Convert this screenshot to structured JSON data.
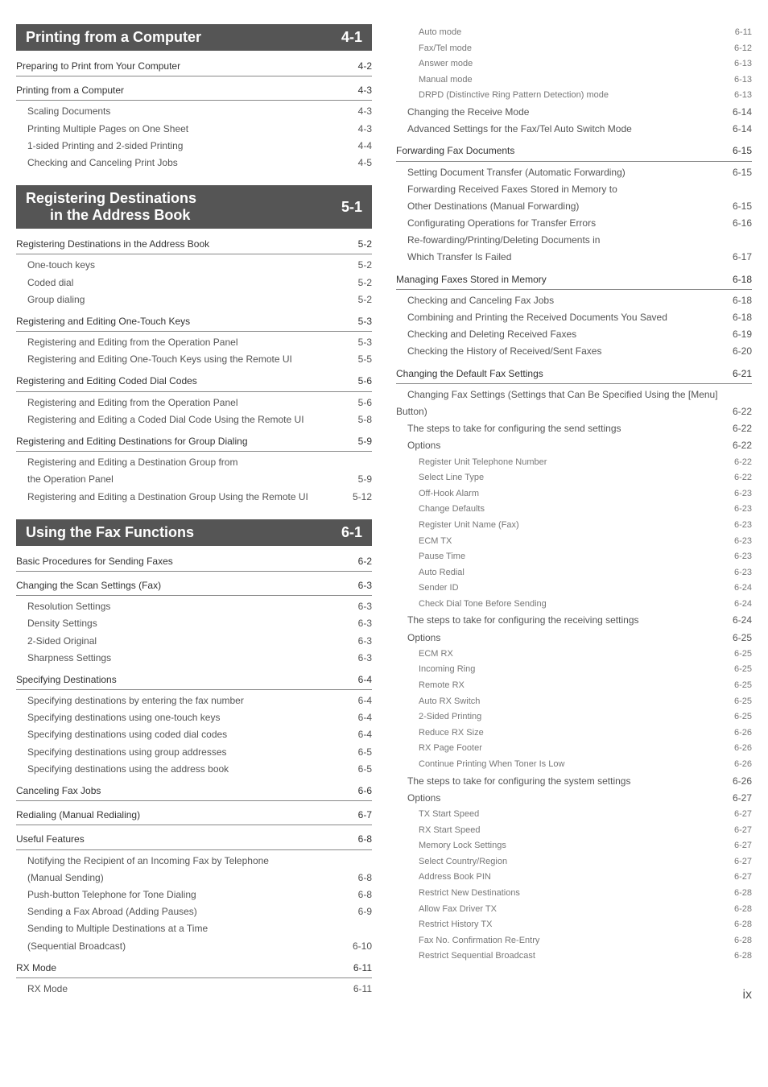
{
  "sections": [
    {
      "title": "Printing from a Computer",
      "page": "4-1"
    },
    {
      "title": "Registering Destinations",
      "subtitle": "in the Address Book",
      "page": "5-1"
    },
    {
      "title": "Using the Fax Functions",
      "page": "6-1"
    }
  ],
  "left": {
    "s1": [
      {
        "lvl": 1,
        "t": "Preparing to Print from Your Computer",
        "p": "4-2"
      },
      {
        "lvl": 1,
        "t": "Printing from a Computer",
        "p": "4-3"
      },
      {
        "lvl": 2,
        "t": "Scaling Documents",
        "p": "4-3"
      },
      {
        "lvl": 2,
        "t": "Printing Multiple Pages on One Sheet",
        "p": "4-3"
      },
      {
        "lvl": 2,
        "t": "1-sided Printing and 2-sided Printing",
        "p": "4-4"
      },
      {
        "lvl": 2,
        "t": "Checking and Canceling Print Jobs",
        "p": "4-5"
      }
    ],
    "s2": [
      {
        "lvl": 1,
        "t": "Registering Destinations in the Address Book",
        "p": "5-2"
      },
      {
        "lvl": 2,
        "t": "One-touch keys",
        "p": "5-2"
      },
      {
        "lvl": 2,
        "t": "Coded dial",
        "p": "5-2"
      },
      {
        "lvl": 2,
        "t": "Group dialing",
        "p": "5-2"
      },
      {
        "lvl": 1,
        "t": "Registering and Editing One-Touch Keys",
        "p": "5-3"
      },
      {
        "lvl": 2,
        "t": "Registering and Editing from the Operation Panel",
        "p": "5-3"
      },
      {
        "lvl": 2,
        "t": "Registering and Editing One-Touch Keys using the Remote UI",
        "p": "5-5"
      },
      {
        "lvl": 1,
        "t": "Registering and Editing Coded Dial Codes",
        "p": "5-6"
      },
      {
        "lvl": 2,
        "t": "Registering and Editing from the Operation Panel",
        "p": "5-6"
      },
      {
        "lvl": 2,
        "t": "Registering and Editing a Coded Dial Code Using the Remote UI",
        "p": "5-8"
      },
      {
        "lvl": 1,
        "t": "Registering and Editing Destinations for Group Dialing",
        "p": "5-9"
      },
      {
        "lvl": 2,
        "t": "Registering and Editing a Destination Group from",
        "cont": true
      },
      {
        "lvl": 2,
        "t": "the Operation Panel",
        "p": "5-9"
      },
      {
        "lvl": 2,
        "t": "Registering and Editing a Destination Group Using the Remote UI",
        "p": "5-12"
      }
    ],
    "s3": [
      {
        "lvl": 1,
        "t": "Basic Procedures for Sending Faxes",
        "p": "6-2"
      },
      {
        "lvl": 1,
        "t": "Changing the Scan Settings (Fax)",
        "p": "6-3"
      },
      {
        "lvl": 2,
        "t": "Resolution Settings",
        "p": "6-3"
      },
      {
        "lvl": 2,
        "t": "Density Settings",
        "p": "6-3"
      },
      {
        "lvl": 2,
        "t": "2-Sided Original",
        "p": "6-3"
      },
      {
        "lvl": 2,
        "t": "Sharpness Settings",
        "p": "6-3"
      },
      {
        "lvl": 1,
        "t": "Specifying Destinations",
        "p": "6-4"
      },
      {
        "lvl": 2,
        "t": "Specifying destinations by entering the fax number",
        "p": "6-4"
      },
      {
        "lvl": 2,
        "t": "Specifying destinations using one-touch keys",
        "p": "6-4"
      },
      {
        "lvl": 2,
        "t": "Specifying destinations using coded dial codes",
        "p": "6-4"
      },
      {
        "lvl": 2,
        "t": "Specifying destinations using group addresses",
        "p": "6-5"
      },
      {
        "lvl": 2,
        "t": "Specifying destinations using the address book",
        "p": "6-5"
      },
      {
        "lvl": 1,
        "t": "Canceling Fax Jobs",
        "p": "6-6"
      },
      {
        "lvl": 1,
        "t": "Redialing (Manual Redialing)",
        "p": "6-7"
      },
      {
        "lvl": 1,
        "t": "Useful Features",
        "p": "6-8"
      },
      {
        "lvl": 2,
        "t": "Notifying the Recipient of an Incoming Fax by Telephone",
        "cont": true
      },
      {
        "lvl": 2,
        "t": "(Manual Sending)",
        "p": "6-8"
      },
      {
        "lvl": 2,
        "t": "Push-button Telephone for Tone Dialing",
        "p": "6-8"
      },
      {
        "lvl": 2,
        "t": "Sending a Fax Abroad (Adding Pauses)",
        "p": "6-9"
      },
      {
        "lvl": 2,
        "t": "Sending to Multiple Destinations at a Time",
        "cont": true
      },
      {
        "lvl": 2,
        "t": "(Sequential Broadcast)",
        "p": "6-10"
      },
      {
        "lvl": 1,
        "t": "RX Mode",
        "p": "6-11"
      },
      {
        "lvl": 2,
        "t": "RX Mode",
        "p": "6-11"
      }
    ]
  },
  "right": {
    "top": [
      {
        "lvl": 3,
        "t": "Auto mode",
        "p": "6-11"
      },
      {
        "lvl": 3,
        "t": "Fax/Tel mode",
        "p": "6-12"
      },
      {
        "lvl": 3,
        "t": "Answer mode",
        "p": "6-13"
      },
      {
        "lvl": 3,
        "t": "Manual mode",
        "p": "6-13"
      },
      {
        "lvl": 3,
        "t": "DRPD (Distinctive Ring Pattern Detection) mode",
        "p": "6-13"
      },
      {
        "lvl": 2,
        "t": "Changing the Receive Mode",
        "p": "6-14"
      },
      {
        "lvl": 2,
        "t": "Advanced Settings for the Fax/Tel Auto Switch Mode",
        "p": "6-14"
      },
      {
        "lvl": 1,
        "t": "Forwarding Fax Documents",
        "p": "6-15"
      },
      {
        "lvl": 2,
        "t": "Setting Document Transfer (Automatic Forwarding)",
        "p": "6-15"
      },
      {
        "lvl": 2,
        "t": "Forwarding Received Faxes Stored in Memory to",
        "cont": true
      },
      {
        "lvl": 2,
        "t": "Other Destinations (Manual Forwarding)",
        "p": "6-15"
      },
      {
        "lvl": 2,
        "t": "Configurating Operations for Transfer Errors",
        "p": "6-16"
      },
      {
        "lvl": 2,
        "t": "Re-fowarding/Printing/Deleting Documents in",
        "cont": true
      },
      {
        "lvl": 2,
        "t": "Which Transfer Is Failed",
        "p": "6-17"
      },
      {
        "lvl": 1,
        "t": "Managing Faxes Stored in Memory",
        "p": "6-18"
      },
      {
        "lvl": 2,
        "t": "Checking and Canceling Fax Jobs",
        "p": "6-18"
      },
      {
        "lvl": 2,
        "t": "Combining and Printing the Received Documents You Saved",
        "p": "6-18"
      },
      {
        "lvl": 2,
        "t": "Checking and Deleting Received Faxes",
        "p": "6-19"
      },
      {
        "lvl": 2,
        "t": "Checking the History of Received/Sent Faxes",
        "p": "6-20"
      },
      {
        "lvl": 1,
        "t": "Changing the Default Fax Settings",
        "p": "6-21"
      },
      {
        "lvl": 2,
        "t": "Changing Fax Settings (Settings that Can Be Specified Using the [Menu]",
        "cont": true,
        "noline": true
      },
      {
        "lvl": 2,
        "t": "Button)",
        "p": "6-22",
        "noline": true,
        "underline": true
      },
      {
        "lvl": 2,
        "t": "The steps to take for configuring the send settings",
        "p": "6-22"
      },
      {
        "lvl": 2,
        "t": "Options",
        "p": "6-22"
      },
      {
        "lvl": 3,
        "t": "Register Unit Telephone Number",
        "p": "6-22"
      },
      {
        "lvl": 3,
        "t": "Select Line Type",
        "p": "6-22"
      },
      {
        "lvl": 3,
        "t": "Off-Hook Alarm",
        "p": "6-23"
      },
      {
        "lvl": 3,
        "t": "Change Defaults",
        "p": "6-23"
      },
      {
        "lvl": 3,
        "t": "Register Unit Name (Fax)",
        "p": "6-23"
      },
      {
        "lvl": 3,
        "t": "ECM TX",
        "p": "6-23"
      },
      {
        "lvl": 3,
        "t": "Pause Time",
        "p": "6-23"
      },
      {
        "lvl": 3,
        "t": "Auto Redial",
        "p": "6-23"
      },
      {
        "lvl": 3,
        "t": "Sender ID",
        "p": "6-24"
      },
      {
        "lvl": 3,
        "t": "Check Dial Tone Before Sending",
        "p": "6-24"
      },
      {
        "lvl": 2,
        "t": "The steps to take for configuring the receiving settings",
        "p": "6-24"
      },
      {
        "lvl": 2,
        "t": "Options",
        "p": "6-25"
      },
      {
        "lvl": 3,
        "t": "ECM RX",
        "p": "6-25"
      },
      {
        "lvl": 3,
        "t": "Incoming Ring",
        "p": "6-25"
      },
      {
        "lvl": 3,
        "t": "Remote RX",
        "p": "6-25"
      },
      {
        "lvl": 3,
        "t": "Auto RX Switch",
        "p": "6-25"
      },
      {
        "lvl": 3,
        "t": "2-Sided Printing",
        "p": "6-25"
      },
      {
        "lvl": 3,
        "t": "Reduce RX Size",
        "p": "6-26"
      },
      {
        "lvl": 3,
        "t": "RX Page Footer",
        "p": "6-26"
      },
      {
        "lvl": 3,
        "t": "Continue Printing When Toner Is Low",
        "p": "6-26"
      },
      {
        "lvl": 2,
        "t": "The steps to take for configuring the system settings",
        "p": "6-26"
      },
      {
        "lvl": 2,
        "t": "Options",
        "p": "6-27"
      },
      {
        "lvl": 3,
        "t": "TX Start Speed",
        "p": "6-27"
      },
      {
        "lvl": 3,
        "t": "RX Start Speed",
        "p": "6-27"
      },
      {
        "lvl": 3,
        "t": "Memory Lock Settings",
        "p": "6-27"
      },
      {
        "lvl": 3,
        "t": "Select Country/Region",
        "p": "6-27"
      },
      {
        "lvl": 3,
        "t": "Address Book PIN",
        "p": "6-27"
      },
      {
        "lvl": 3,
        "t": "Restrict New Destinations",
        "p": "6-28"
      },
      {
        "lvl": 3,
        "t": "Allow Fax Driver TX",
        "p": "6-28"
      },
      {
        "lvl": 3,
        "t": "Restrict History TX",
        "p": "6-28"
      },
      {
        "lvl": 3,
        "t": "Fax No. Confirmation Re-Entry",
        "p": "6-28"
      },
      {
        "lvl": 3,
        "t": "Restrict Sequential Broadcast",
        "p": "6-28"
      }
    ]
  },
  "pagenum": "ix"
}
